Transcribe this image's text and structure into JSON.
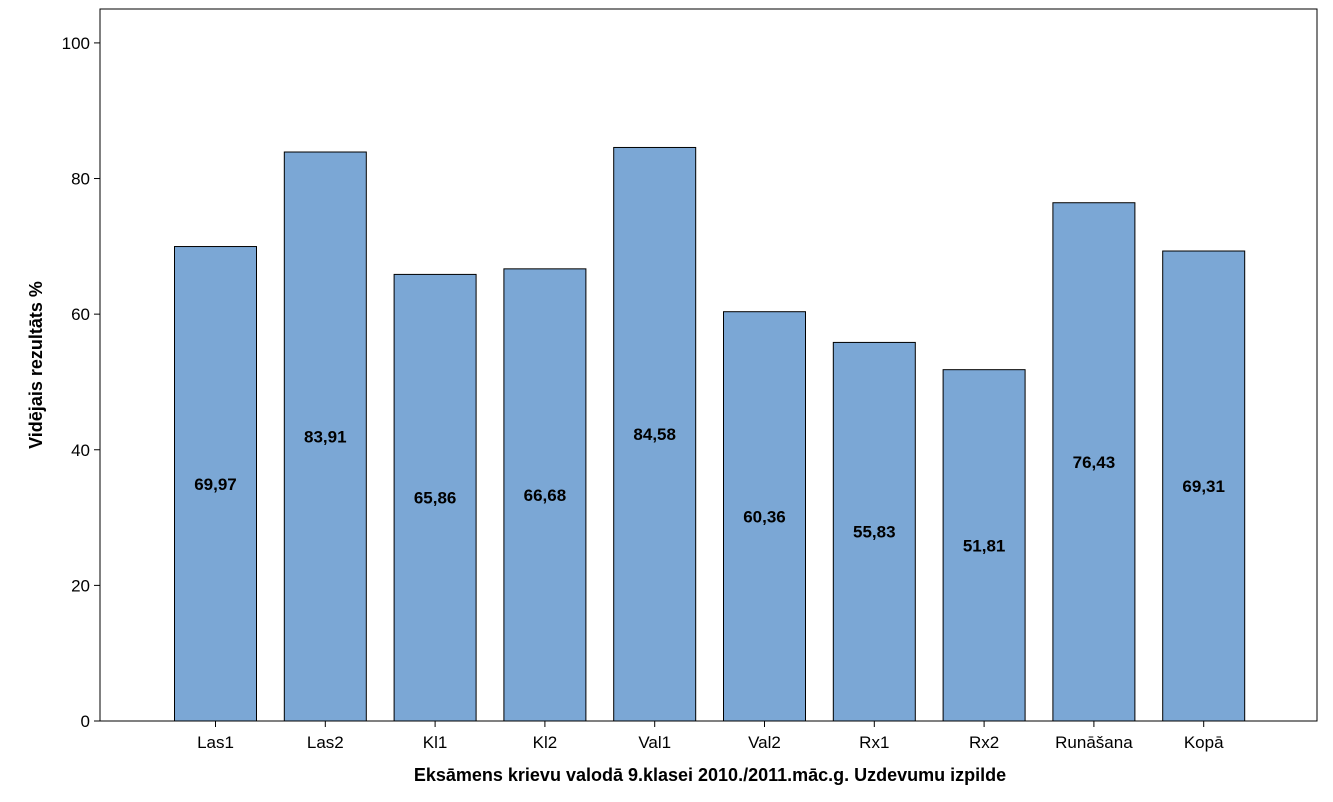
{
  "chart_data": {
    "type": "bar",
    "categories": [
      "Las1",
      "Las2",
      "Kl1",
      "Kl2",
      "Val1",
      "Val2",
      "Rx1",
      "Rx2",
      "Runāšana",
      "Kopā"
    ],
    "values": [
      69.97,
      83.91,
      65.86,
      66.68,
      84.58,
      60.36,
      55.83,
      51.81,
      76.43,
      69.31
    ],
    "data_labels": [
      "69,97",
      "83,91",
      "65,86",
      "66,68",
      "84,58",
      "60,36",
      "55,83",
      "51,81",
      "76,43",
      "69,31"
    ],
    "title": "",
    "xlabel": "Eksāmens krievu valodā 9.klasei 2010./2011.māc.g. Uzdevumu izpilde",
    "ylabel": "Vidējais rezultāts %",
    "ylim": [
      0,
      105
    ],
    "yticks": [
      0,
      20,
      40,
      60,
      80,
      100
    ],
    "grid": false,
    "legend": "none",
    "bar_color": "#7BA7D5",
    "bar_outline": "#000000"
  }
}
